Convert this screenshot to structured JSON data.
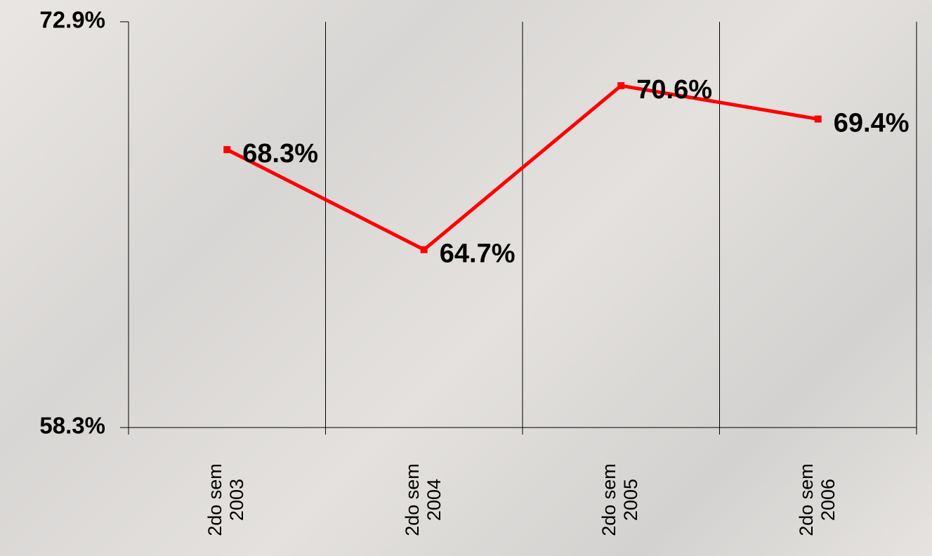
{
  "chart_data": {
    "type": "line",
    "categories": [
      "2do sem 2003",
      "2do sem 2004",
      "2do sem 2005",
      "2do sem 2006"
    ],
    "series": [
      {
        "color": "#ff0000",
        "values": [
          68.3,
          64.7,
          70.6,
          69.4
        ],
        "value_labels": [
          "68.3%",
          "64.7%",
          "70.6%",
          "69.4%"
        ]
      }
    ],
    "ylim": [
      58.3,
      72.9
    ],
    "yticks": [
      {
        "value": 58.3,
        "label": "58.3%"
      },
      {
        "value": 72.9,
        "label": "72.9%"
      }
    ],
    "grid": true
  }
}
